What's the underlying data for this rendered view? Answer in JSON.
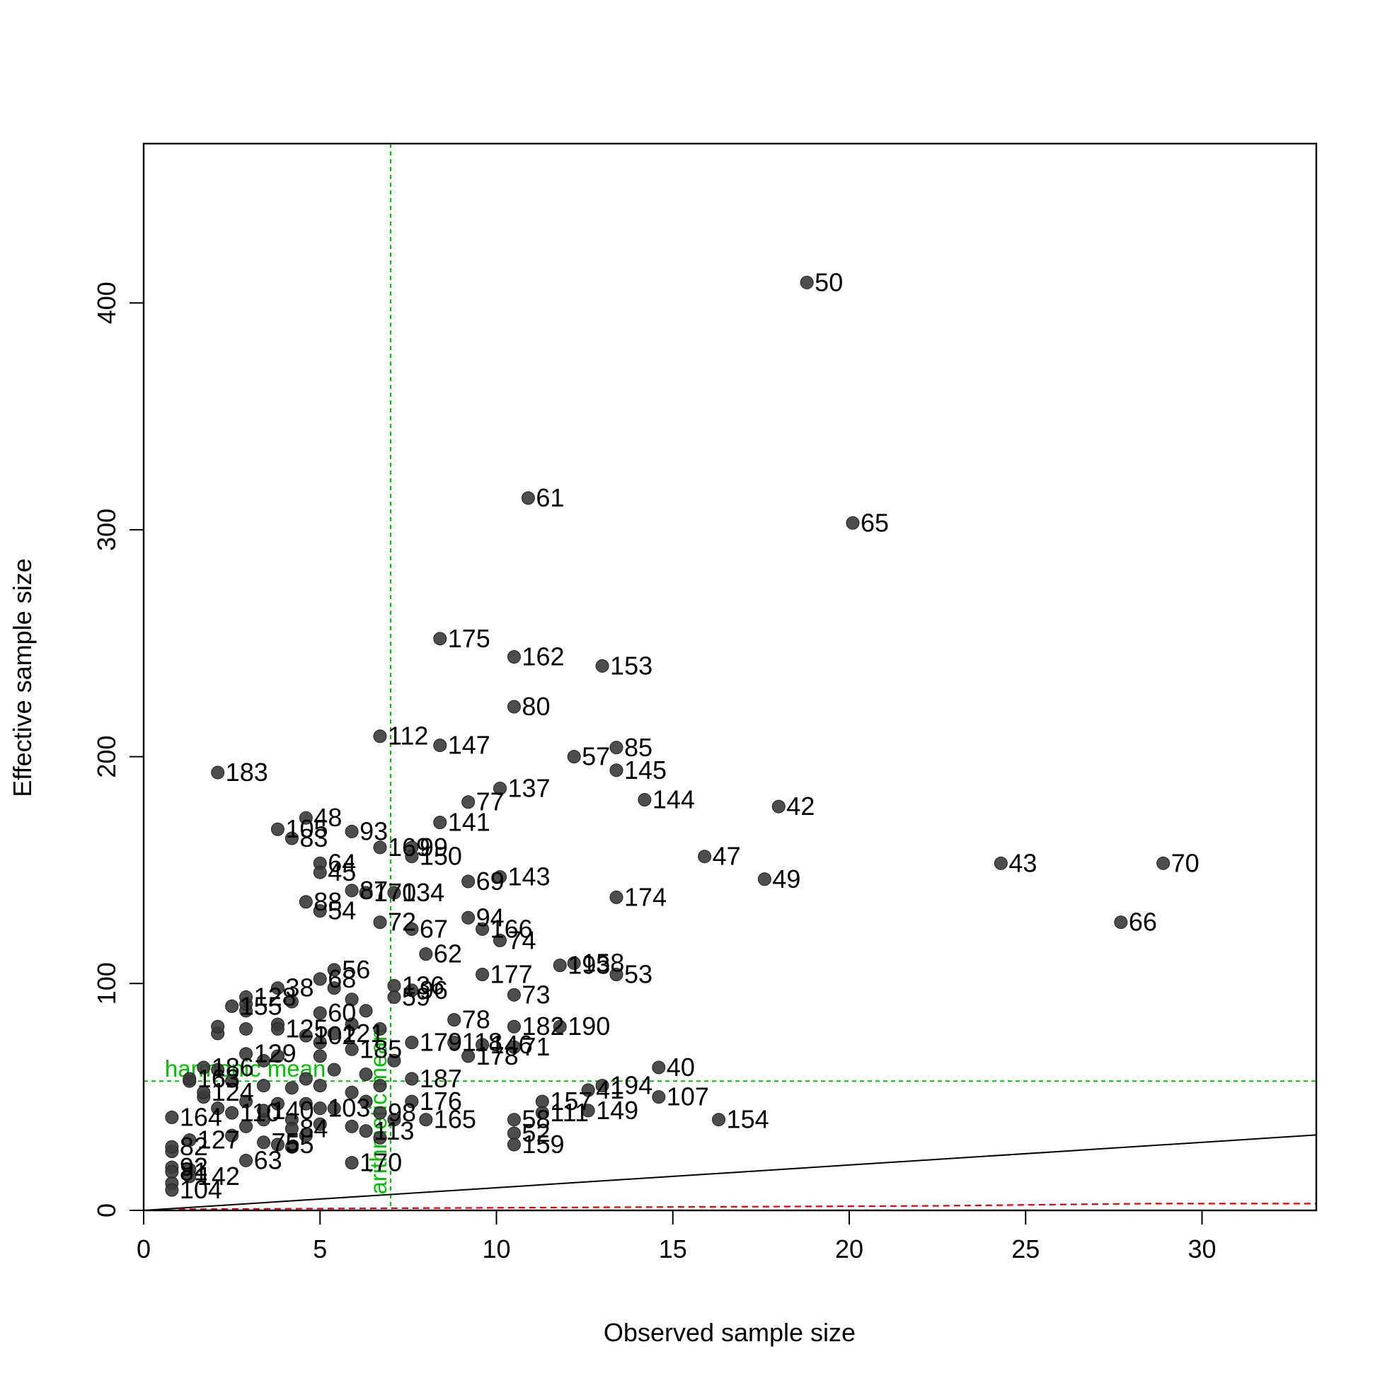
{
  "chart_data": {
    "type": "scatter",
    "title": "",
    "xlabel": "Observed sample size",
    "ylabel": "Effective sample size",
    "xlim": [
      0,
      33.3
    ],
    "ylim": [
      0,
      470
    ],
    "xticks": [
      "0",
      "5",
      "10",
      "15",
      "20",
      "25",
      "30"
    ],
    "yticks": [
      "0",
      "100",
      "200",
      "300",
      "400"
    ],
    "grid": false,
    "colors": {
      "points": "#3a3a3a",
      "reference_lines": "#00c000",
      "identity_line": "#000000",
      "lower_bound_line": "#e00000"
    },
    "reference_lines": {
      "arithmetic_mean": {
        "x": 7.0,
        "label": "arithmetic mean"
      },
      "harmonic_mean": {
        "y": 57,
        "label": "harmonic mean"
      }
    },
    "identity_line": {
      "slope": 1
    },
    "lower_bound_curve": [
      [
        1,
        0.5
      ],
      [
        5,
        0.8
      ],
      [
        15,
        1.5
      ],
      [
        22.5,
        2
      ],
      [
        28.5,
        3
      ],
      [
        33.3,
        3
      ]
    ],
    "points": [
      {
        "id": "50",
        "x": 18.8,
        "y": 409
      },
      {
        "id": "61",
        "x": 10.9,
        "y": 314
      },
      {
        "id": "65",
        "x": 20.1,
        "y": 303
      },
      {
        "id": "175",
        "x": 8.4,
        "y": 252
      },
      {
        "id": "162",
        "x": 10.5,
        "y": 244
      },
      {
        "id": "153",
        "x": 13.0,
        "y": 240
      },
      {
        "id": "80",
        "x": 10.5,
        "y": 222
      },
      {
        "id": "112",
        "x": 6.7,
        "y": 209
      },
      {
        "id": "147",
        "x": 8.4,
        "y": 205
      },
      {
        "id": "85",
        "x": 13.4,
        "y": 204
      },
      {
        "id": "57",
        "x": 12.2,
        "y": 200
      },
      {
        "id": "145",
        "x": 13.4,
        "y": 194
      },
      {
        "id": "183",
        "x": 2.1,
        "y": 193
      },
      {
        "id": "137",
        "x": 10.1,
        "y": 186
      },
      {
        "id": "77",
        "x": 9.2,
        "y": 180
      },
      {
        "id": "144",
        "x": 14.2,
        "y": 181
      },
      {
        "id": "42",
        "x": 18.0,
        "y": 178
      },
      {
        "id": "48",
        "x": 4.6,
        "y": 173
      },
      {
        "id": "141",
        "x": 8.4,
        "y": 171
      },
      {
        "id": "105",
        "x": 3.8,
        "y": 168
      },
      {
        "id": "93",
        "x": 5.9,
        "y": 167
      },
      {
        "id": "83",
        "x": 4.2,
        "y": 164
      },
      {
        "id": "169",
        "x": 6.7,
        "y": 160
      },
      {
        "id": "99",
        "x": 7.6,
        "y": 160
      },
      {
        "id": "150",
        "x": 7.6,
        "y": 156
      },
      {
        "id": "47",
        "x": 15.9,
        "y": 156
      },
      {
        "id": "64",
        "x": 5.0,
        "y": 153
      },
      {
        "id": "43",
        "x": 24.3,
        "y": 153
      },
      {
        "id": "70",
        "x": 28.9,
        "y": 153
      },
      {
        "id": "45",
        "x": 5.0,
        "y": 149
      },
      {
        "id": "143",
        "x": 10.1,
        "y": 147
      },
      {
        "id": "49",
        "x": 17.6,
        "y": 146
      },
      {
        "id": "69",
        "x": 9.2,
        "y": 145
      },
      {
        "id": "87",
        "x": 5.9,
        "y": 141
      },
      {
        "id": "170",
        "x": 6.3,
        "y": 140
      },
      {
        "id": "134",
        "x": 7.1,
        "y": 140
      },
      {
        "id": "174",
        "x": 13.4,
        "y": 138
      },
      {
        "id": "88",
        "x": 4.6,
        "y": 136
      },
      {
        "id": "54",
        "x": 5.0,
        "y": 132
      },
      {
        "id": "94",
        "x": 9.2,
        "y": 129
      },
      {
        "id": "66",
        "x": 27.7,
        "y": 127
      },
      {
        "id": "72",
        "x": 6.7,
        "y": 127
      },
      {
        "id": "67",
        "x": 7.6,
        "y": 124
      },
      {
        "id": "166",
        "x": 9.6,
        "y": 124
      },
      {
        "id": "74",
        "x": 10.1,
        "y": 119
      },
      {
        "id": "62",
        "x": 8.0,
        "y": 113
      },
      {
        "id": "193",
        "x": 11.8,
        "y": 108
      },
      {
        "id": "158",
        "x": 12.2,
        "y": 109
      },
      {
        "id": "53",
        "x": 13.4,
        "y": 104
      },
      {
        "id": "177",
        "x": 9.6,
        "y": 104
      },
      {
        "id": "56",
        "x": 5.4,
        "y": 106
      },
      {
        "id": "68",
        "x": 5.0,
        "y": 102
      },
      {
        "id": "38",
        "x": 3.8,
        "y": 98
      },
      {
        "id": "136",
        "x": 7.1,
        "y": 99
      },
      {
        "id": "96",
        "x": 7.6,
        "y": 97
      },
      {
        "id": "73",
        "x": 10.5,
        "y": 95
      },
      {
        "id": "128",
        "x": 2.9,
        "y": 94
      },
      {
        "id": "59",
        "x": 7.1,
        "y": 94
      },
      {
        "id": "155",
        "x": 2.5,
        "y": 90
      },
      {
        "id": "60",
        "x": 5.0,
        "y": 87
      },
      {
        "id": "78",
        "x": 8.8,
        "y": 84
      },
      {
        "id": "182",
        "x": 10.5,
        "y": 81
      },
      {
        "id": "190",
        "x": 11.8,
        "y": 81
      },
      {
        "id": "125",
        "x": 3.8,
        "y": 80
      },
      {
        "id": "102",
        "x": 4.6,
        "y": 77
      },
      {
        "id": "179",
        "x": 7.6,
        "y": 74
      },
      {
        "id": "118",
        "x": 8.8,
        "y": 74
      },
      {
        "id": "146",
        "x": 9.6,
        "y": 73
      },
      {
        "id": "71",
        "x": 10.5,
        "y": 72
      },
      {
        "id": "185",
        "x": 5.9,
        "y": 71
      },
      {
        "id": "129",
        "x": 2.9,
        "y": 69
      },
      {
        "id": "178",
        "x": 9.2,
        "y": 68
      },
      {
        "id": "40",
        "x": 14.6,
        "y": 63
      },
      {
        "id": "186",
        "x": 1.7,
        "y": 63
      },
      {
        "id": "187",
        "x": 7.6,
        "y": 58
      },
      {
        "id": "194",
        "x": 13.0,
        "y": 55
      },
      {
        "id": "41",
        "x": 12.6,
        "y": 53
      },
      {
        "id": "107",
        "x": 14.6,
        "y": 50
      },
      {
        "id": "176",
        "x": 7.6,
        "y": 48
      },
      {
        "id": "157",
        "x": 11.3,
        "y": 48
      },
      {
        "id": "111",
        "x": 11.3,
        "y": 43
      },
      {
        "id": "149",
        "x": 12.6,
        "y": 44
      },
      {
        "id": "154",
        "x": 16.3,
        "y": 40
      },
      {
        "id": "165",
        "x": 8.0,
        "y": 40
      },
      {
        "id": "164",
        "x": 0.8,
        "y": 41
      },
      {
        "id": "58",
        "x": 10.5,
        "y": 40
      },
      {
        "id": "52",
        "x": 10.5,
        "y": 34
      },
      {
        "id": "159",
        "x": 10.5,
        "y": 29
      },
      {
        "id": "113",
        "x": 6.3,
        "y": 35
      },
      {
        "id": "55",
        "x": 3.8,
        "y": 29
      },
      {
        "id": "63",
        "x": 2.9,
        "y": 22
      },
      {
        "id": "170b",
        "label": "170",
        "x": 5.9,
        "y": 21
      },
      {
        "id": "82",
        "x": 0.8,
        "y": 28
      },
      {
        "id": "92",
        "x": 0.8,
        "y": 19
      },
      {
        "id": "81",
        "x": 0.8,
        "y": 17
      },
      {
        "id": "142",
        "x": 1.3,
        "y": 15
      },
      {
        "id": "104",
        "x": 0.8,
        "y": 9
      },
      {
        "id": "127",
        "x": 1.3,
        "y": 31
      },
      {
        "id": "110",
        "x": 2.5,
        "y": 43
      },
      {
        "id": "140",
        "x": 3.4,
        "y": 44
      },
      {
        "id": "103",
        "x": 5.0,
        "y": 45
      },
      {
        "id": "84",
        "x": 4.2,
        "y": 36
      },
      {
        "id": "163",
        "x": 1.3,
        "y": 58
      },
      {
        "id": "124",
        "x": 1.7,
        "y": 52
      },
      {
        "id": "75",
        "x": 3.4,
        "y": 30
      },
      {
        "id": "98",
        "x": 6.7,
        "y": 43
      },
      {
        "id": "121",
        "x": 5.4,
        "y": 78
      }
    ],
    "unlabeled_points": [
      [
        1.3,
        57
      ],
      [
        2.1,
        45
      ],
      [
        2.1,
        62
      ],
      [
        2.5,
        33
      ],
      [
        2.5,
        57
      ],
      [
        2.9,
        37
      ],
      [
        2.9,
        48
      ],
      [
        2.9,
        88
      ],
      [
        3.4,
        40
      ],
      [
        3.4,
        55
      ],
      [
        3.4,
        66
      ],
      [
        3.8,
        47
      ],
      [
        3.8,
        68
      ],
      [
        3.8,
        82
      ],
      [
        4.2,
        28
      ],
      [
        4.2,
        40
      ],
      [
        4.2,
        54
      ],
      [
        4.2,
        92
      ],
      [
        4.6,
        33
      ],
      [
        4.6,
        47
      ],
      [
        4.6,
        58
      ],
      [
        5.0,
        38
      ],
      [
        5.0,
        55
      ],
      [
        5.0,
        68
      ],
      [
        5.0,
        74
      ],
      [
        5.4,
        45
      ],
      [
        5.4,
        62
      ],
      [
        5.4,
        98
      ],
      [
        5.9,
        37
      ],
      [
        5.9,
        52
      ],
      [
        5.9,
        82
      ],
      [
        5.9,
        93
      ],
      [
        6.3,
        48
      ],
      [
        6.3,
        60
      ],
      [
        6.3,
        88
      ],
      [
        6.7,
        32
      ],
      [
        6.7,
        55
      ],
      [
        6.7,
        80
      ],
      [
        7.1,
        40
      ],
      [
        7.1,
        66
      ],
      [
        2.1,
        78
      ],
      [
        2.1,
        81
      ],
      [
        2.9,
        80
      ],
      [
        2.9,
        91
      ],
      [
        1.7,
        50
      ],
      [
        1.3,
        18
      ],
      [
        0.8,
        12
      ],
      [
        0.8,
        26
      ]
    ]
  }
}
